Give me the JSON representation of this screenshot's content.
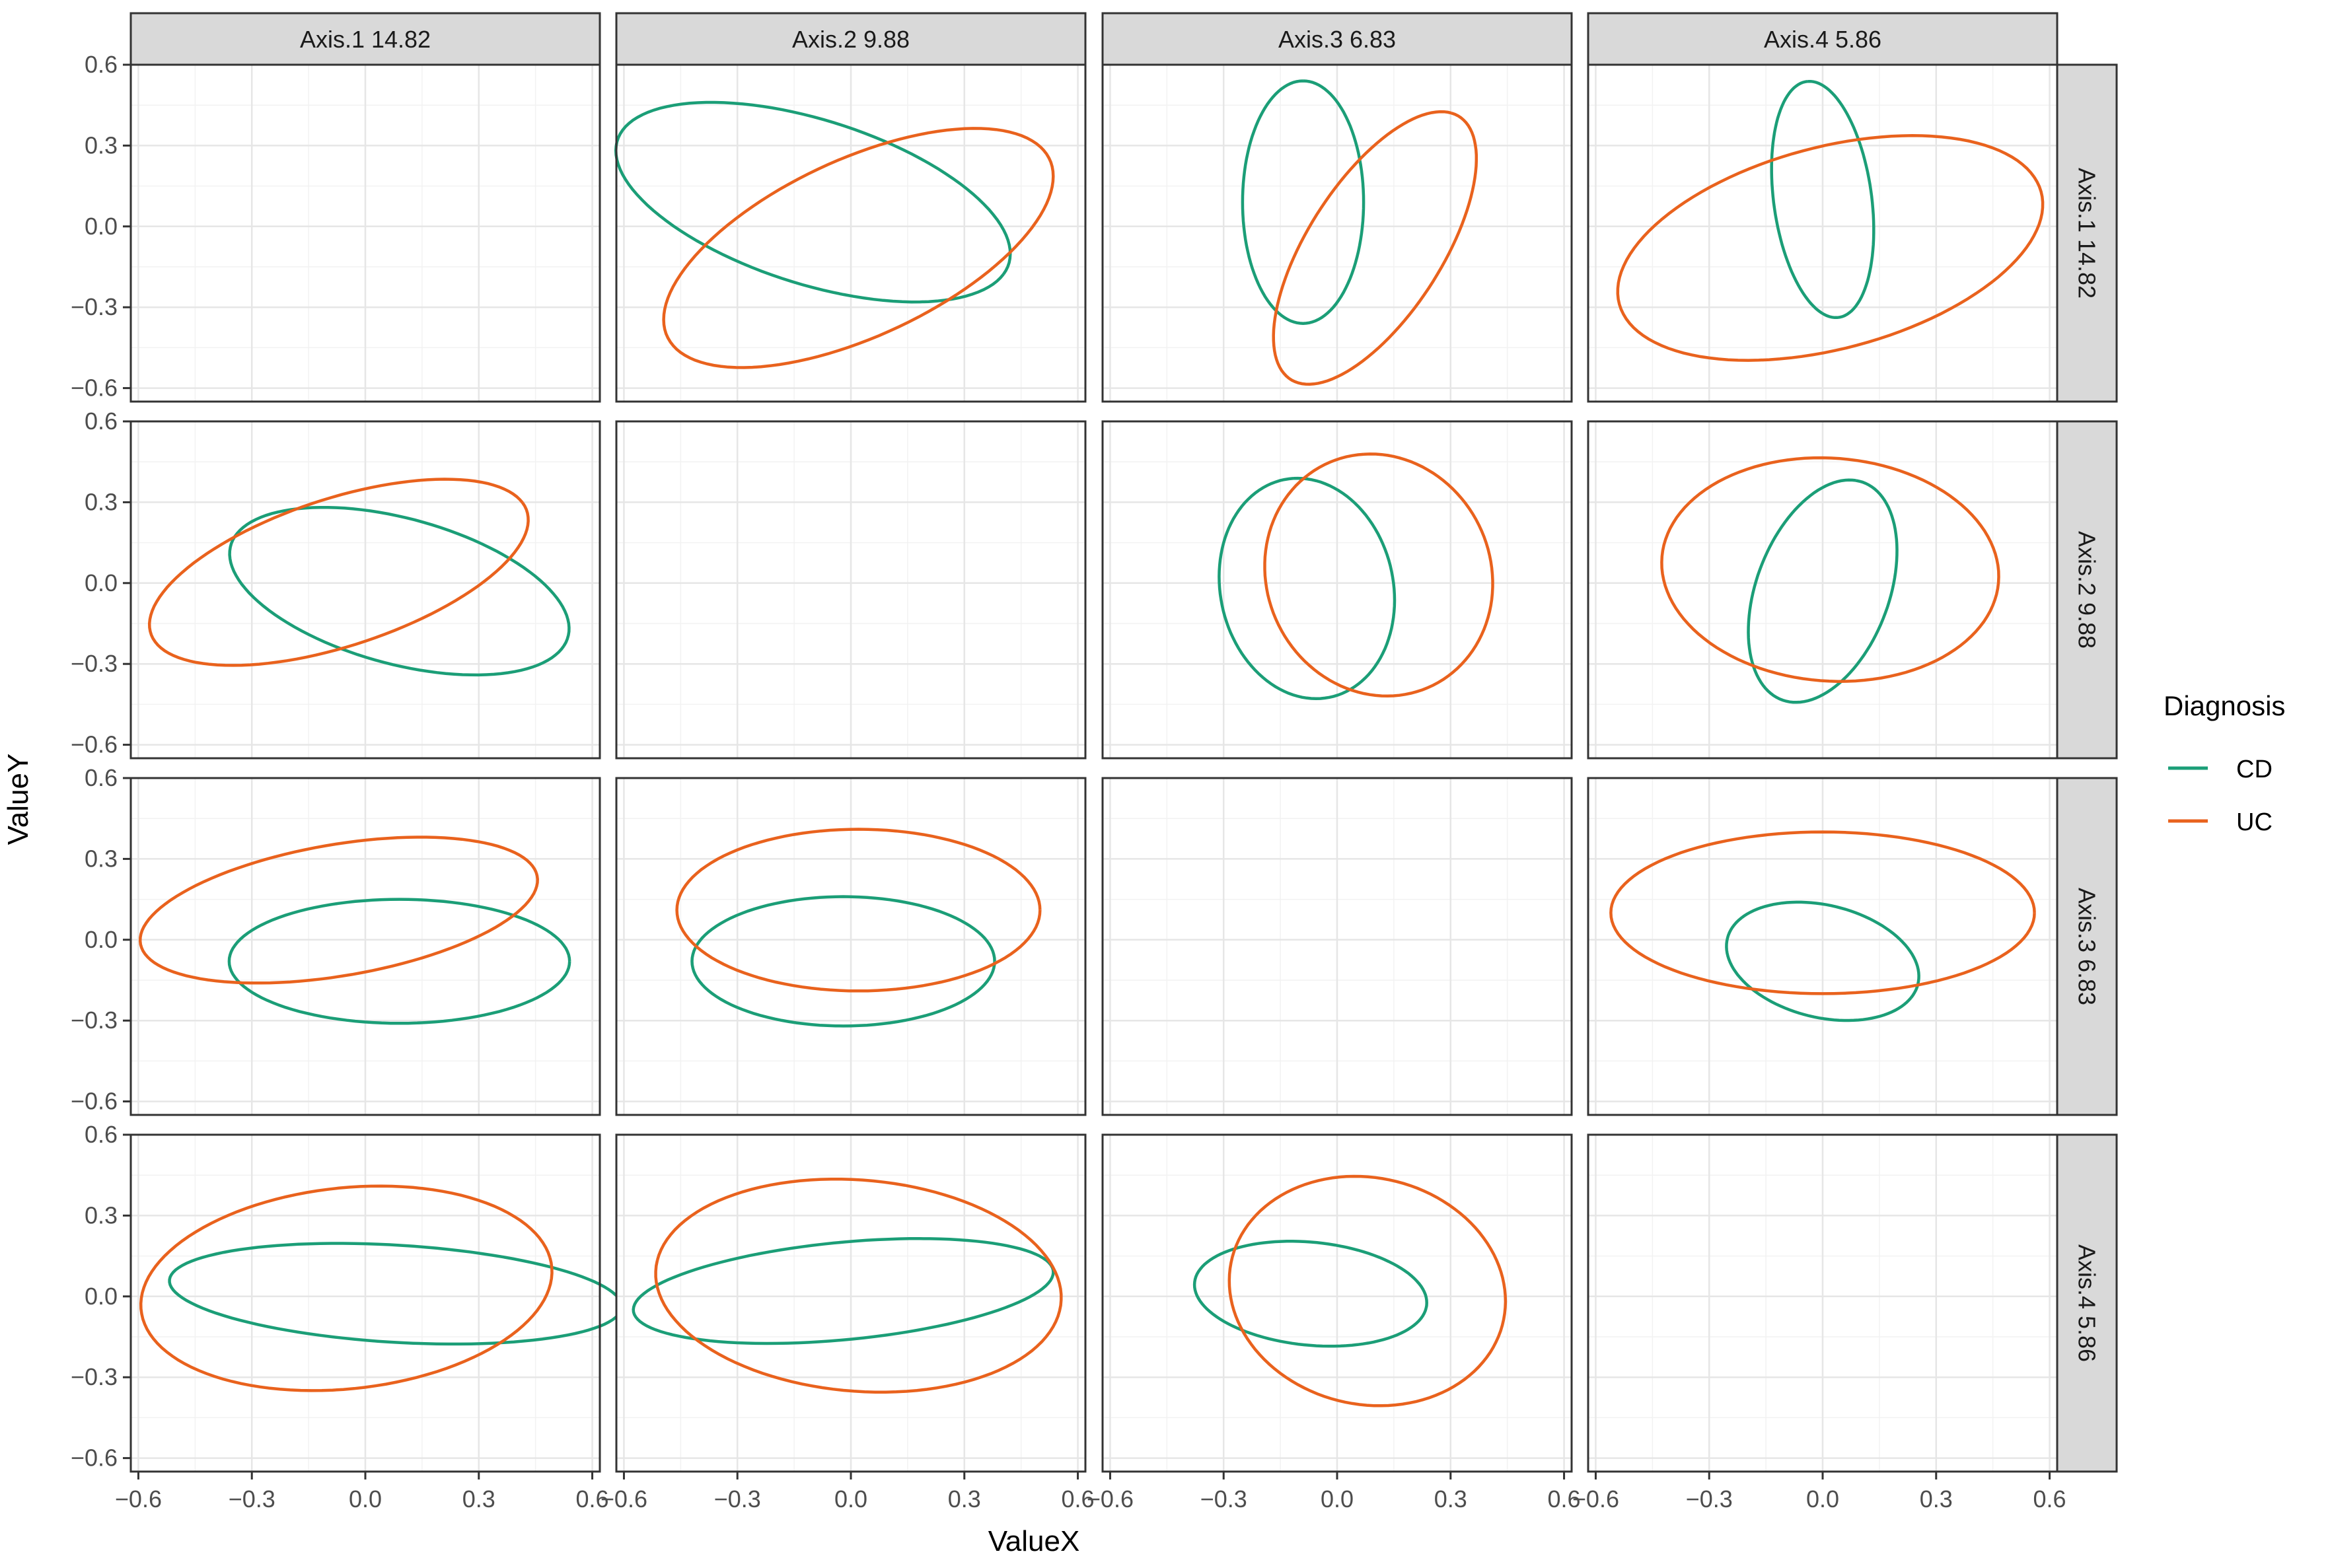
{
  "chart_data": {
    "type": "scatter",
    "facet_labels": [
      "Axis.1 14.82",
      "Axis.2 9.88",
      "Axis.3 6.83",
      "Axis.4 5.86"
    ],
    "xlabel": "ValueX",
    "ylabel": "ValueY",
    "xlim": [
      -0.62,
      0.62
    ],
    "ylim": [
      -0.65,
      0.6
    ],
    "x_ticks": [
      -0.6,
      -0.3,
      0.0,
      0.3,
      0.6
    ],
    "x_tick_labels": [
      "−0.6",
      "−0.3",
      "0.0",
      "0.3",
      "0.6"
    ],
    "y_ticks": [
      -0.6,
      -0.3,
      0.0,
      0.3,
      0.6
    ],
    "y_tick_labels": [
      "−0.6",
      "−0.3",
      "0.0",
      "0.3",
      "0.6"
    ],
    "grid": true,
    "legend": {
      "title": "Diagnosis",
      "position": "right",
      "entries": [
        {
          "name": "CD",
          "color": "#1b9e77"
        },
        {
          "name": "UC",
          "color": "#e9621d"
        }
      ]
    },
    "ellipses": [
      {
        "row": 0,
        "col": 1,
        "group": "CD",
        "cx": -0.1,
        "cy": 0.09,
        "a": 0.57,
        "b": 0.29,
        "angle": -28
      },
      {
        "row": 0,
        "col": 1,
        "group": "UC",
        "cx": 0.02,
        "cy": -0.08,
        "a": 0.61,
        "b": 0.3,
        "angle": 38
      },
      {
        "row": 0,
        "col": 2,
        "group": "CD",
        "cx": -0.09,
        "cy": 0.09,
        "a": 0.45,
        "b": 0.16,
        "angle": 90
      },
      {
        "row": 0,
        "col": 2,
        "group": "UC",
        "cx": 0.1,
        "cy": -0.08,
        "a": 0.54,
        "b": 0.19,
        "angle": 68
      },
      {
        "row": 0,
        "col": 3,
        "group": "CD",
        "cx": 0.0,
        "cy": 0.1,
        "a": 0.44,
        "b": 0.13,
        "angle": 95
      },
      {
        "row": 0,
        "col": 3,
        "group": "UC",
        "cx": 0.02,
        "cy": -0.08,
        "a": 0.6,
        "b": 0.36,
        "angle": 26
      },
      {
        "row": 1,
        "col": 0,
        "group": "CD",
        "cx": 0.09,
        "cy": -0.03,
        "a": 0.48,
        "b": 0.26,
        "angle": -25
      },
      {
        "row": 1,
        "col": 0,
        "group": "UC",
        "cx": -0.07,
        "cy": 0.04,
        "a": 0.55,
        "b": 0.26,
        "angle": 28
      },
      {
        "row": 1,
        "col": 2,
        "group": "CD",
        "cx": -0.08,
        "cy": -0.02,
        "a": 0.41,
        "b": 0.23,
        "angle": 95
      },
      {
        "row": 1,
        "col": 2,
        "group": "UC",
        "cx": 0.11,
        "cy": 0.03,
        "a": 0.45,
        "b": 0.3,
        "angle": 95
      },
      {
        "row": 1,
        "col": 3,
        "group": "CD",
        "cx": 0.0,
        "cy": -0.03,
        "a": 0.42,
        "b": 0.18,
        "angle": 78
      },
      {
        "row": 1,
        "col": 3,
        "group": "UC",
        "cx": 0.02,
        "cy": 0.05,
        "a": 0.45,
        "b": 0.41,
        "angle": 160
      },
      {
        "row": 2,
        "col": 0,
        "group": "CD",
        "cx": 0.09,
        "cy": -0.08,
        "a": 0.45,
        "b": 0.23,
        "angle": 0
      },
      {
        "row": 2,
        "col": 0,
        "group": "UC",
        "cx": -0.07,
        "cy": 0.11,
        "a": 0.54,
        "b": 0.24,
        "angle": 15
      },
      {
        "row": 2,
        "col": 1,
        "group": "CD",
        "cx": -0.02,
        "cy": -0.08,
        "a": 0.4,
        "b": 0.24,
        "angle": 0
      },
      {
        "row": 2,
        "col": 1,
        "group": "UC",
        "cx": 0.02,
        "cy": 0.11,
        "a": 0.48,
        "b": 0.3,
        "angle": 0
      },
      {
        "row": 2,
        "col": 3,
        "group": "CD",
        "cx": 0.0,
        "cy": -0.08,
        "a": 0.27,
        "b": 0.2,
        "angle": 330
      },
      {
        "row": 2,
        "col": 3,
        "group": "UC",
        "cx": 0.0,
        "cy": 0.1,
        "a": 0.56,
        "b": 0.3,
        "angle": 0
      },
      {
        "row": 3,
        "col": 0,
        "group": "CD",
        "cx": 0.08,
        "cy": 0.01,
        "a": 0.6,
        "b": 0.18,
        "angle": -5
      },
      {
        "row": 3,
        "col": 0,
        "group": "UC",
        "cx": -0.05,
        "cy": 0.03,
        "a": 0.55,
        "b": 0.37,
        "angle": 12
      },
      {
        "row": 3,
        "col": 1,
        "group": "CD",
        "cx": -0.02,
        "cy": 0.02,
        "a": 0.56,
        "b": 0.18,
        "angle": 8
      },
      {
        "row": 3,
        "col": 1,
        "group": "UC",
        "cx": 0.02,
        "cy": 0.04,
        "a": 0.54,
        "b": 0.39,
        "angle": 170
      },
      {
        "row": 3,
        "col": 2,
        "group": "CD",
        "cx": -0.07,
        "cy": 0.01,
        "a": 0.31,
        "b": 0.19,
        "angle": -10
      },
      {
        "row": 3,
        "col": 2,
        "group": "UC",
        "cx": 0.08,
        "cy": 0.02,
        "a": 0.43,
        "b": 0.36,
        "angle": 105
      }
    ]
  }
}
